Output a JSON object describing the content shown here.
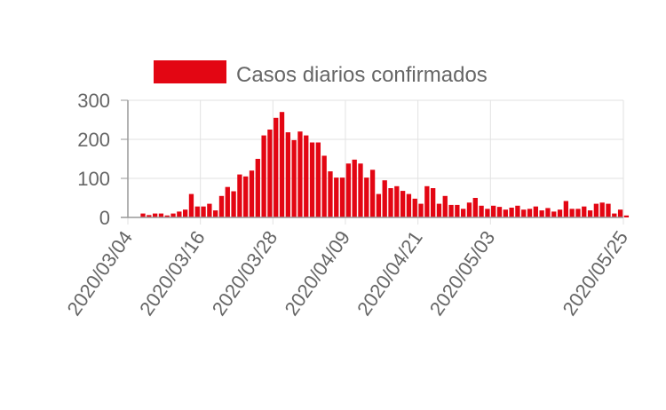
{
  "chart_data": {
    "type": "bar",
    "title": "",
    "xlabel": "",
    "ylabel": "",
    "ylim": [
      0,
      300
    ],
    "y_ticks": [
      0,
      100,
      200,
      300
    ],
    "x_tick_labels": [
      "2020/03/04",
      "2020/03/16",
      "2020/03/28",
      "2020/04/09",
      "2020/04/21",
      "2020/05/03",
      "2020/05/25"
    ],
    "x_start": "2020/03/04",
    "x_end": "2020/05/25",
    "grid": true,
    "legend_position": "top",
    "series": [
      {
        "name": "Casos diarios confirmados",
        "color": "#e30613",
        "start_date": "2020/03/06",
        "values": [
          10,
          6,
          10,
          10,
          5,
          10,
          15,
          20,
          60,
          28,
          28,
          35,
          18,
          55,
          78,
          67,
          110,
          105,
          120,
          150,
          210,
          225,
          255,
          270,
          218,
          198,
          220,
          210,
          192,
          192,
          158,
          118,
          102,
          102,
          138,
          148,
          138,
          102,
          122,
          60,
          95,
          75,
          80,
          68,
          60,
          48,
          35,
          80,
          75,
          35,
          55,
          32,
          32,
          22,
          38,
          50,
          30,
          22,
          30,
          27,
          20,
          25,
          30,
          20,
          22,
          28,
          18,
          24,
          15,
          20,
          42,
          22,
          22,
          28,
          18,
          35,
          38,
          35,
          10,
          20,
          5
        ]
      }
    ]
  }
}
